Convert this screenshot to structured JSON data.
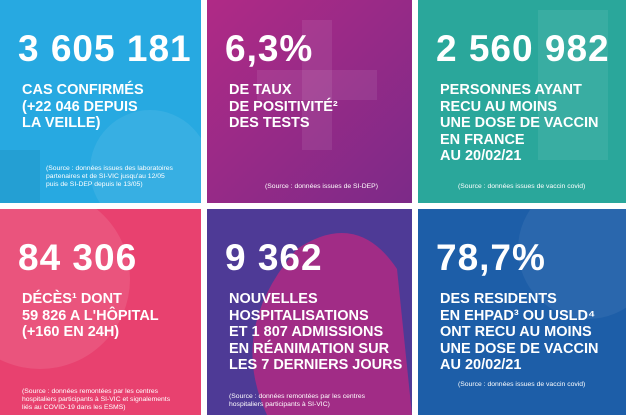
{
  "tiles": [
    {
      "number": "3 605 181",
      "lines": [
        "CAS CONFIRMÉS",
        "(+22 046 DEPUIS",
        "LA VEILLE)"
      ],
      "source": [
        "(Source : données issues des laboratoires",
        "partenaires et de SI-VIC jusqu'au 12/05",
        "puis de SI-DEP depuis le 13/05)"
      ]
    },
    {
      "number": "6,3%",
      "lines": [
        "DE TAUX",
        "DE POSITIVITÉ²",
        "DES TESTS"
      ],
      "source": [
        "(Source : données issues de SI-DEP)"
      ]
    },
    {
      "number": "2 560 982",
      "lines": [
        "PERSONNES AYANT",
        "RECU AU MOINS",
        "UNE DOSE DE VACCIN",
        "EN FRANCE",
        "AU 20/02/21"
      ],
      "source": [
        "(Source : données issues de vaccin covid)"
      ]
    },
    {
      "number": "84 306",
      "lines": [
        "DÉCÈS¹ DONT",
        "59 826 A L'HÔPITAL",
        "(+160 EN 24H)"
      ],
      "source": [
        "(Source : données remontées par les centres",
        "hospitaliers participants à SI-VIC et signalements",
        "liés au COVID-19 dans les ESMS)"
      ]
    },
    {
      "number": "9 362",
      "lines": [
        "NOUVELLES",
        "HOSPITALISATIONS",
        "ET 1 807 ADMISSIONS",
        "EN RÉANIMATION SUR",
        "LES 7 DERNIERS JOURS"
      ],
      "source": [
        "(Source : données remontées par les centres",
        "hospitaliers participants à SI-VIC)"
      ]
    },
    {
      "number": "78,7%",
      "lines": [
        "DES RESIDENTS",
        "EN EHPAD³ OU USLD⁴",
        "ONT RECU AU MOINS",
        "UNE DOSE DE VACCIN",
        "AU 20/02/21"
      ],
      "source": [
        "(Source : données issues de vaccin covid)"
      ]
    }
  ]
}
